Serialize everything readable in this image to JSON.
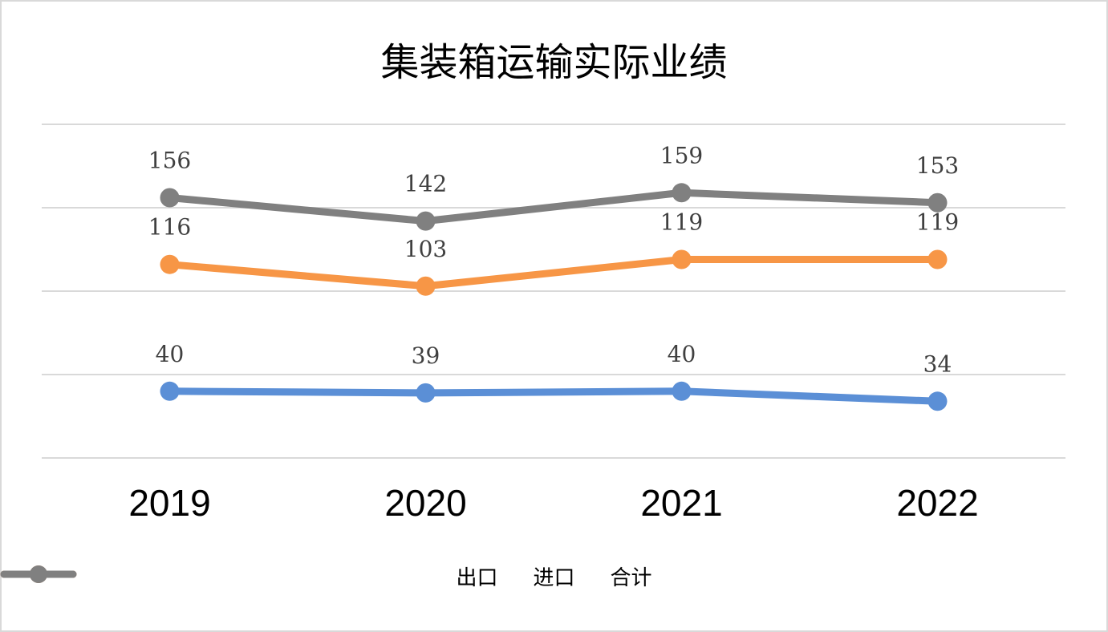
{
  "chart_data": {
    "type": "line",
    "title": "集装箱运输实际业绩",
    "categories": [
      "2019",
      "2020",
      "2021",
      "2022"
    ],
    "series": [
      {
        "name": "出口",
        "color": "#5b8fd6",
        "values": [
          40,
          39,
          40,
          34
        ]
      },
      {
        "name": "进口",
        "color": "#f79646",
        "values": [
          116,
          103,
          119,
          119
        ]
      },
      {
        "name": "合计",
        "color": "#808080",
        "values": [
          156,
          142,
          159,
          153
        ]
      }
    ],
    "ylim": [
      0,
      200
    ],
    "grid": true,
    "data_labels": true,
    "y_tick_labels_shown": false,
    "legend_position": "bottom"
  }
}
